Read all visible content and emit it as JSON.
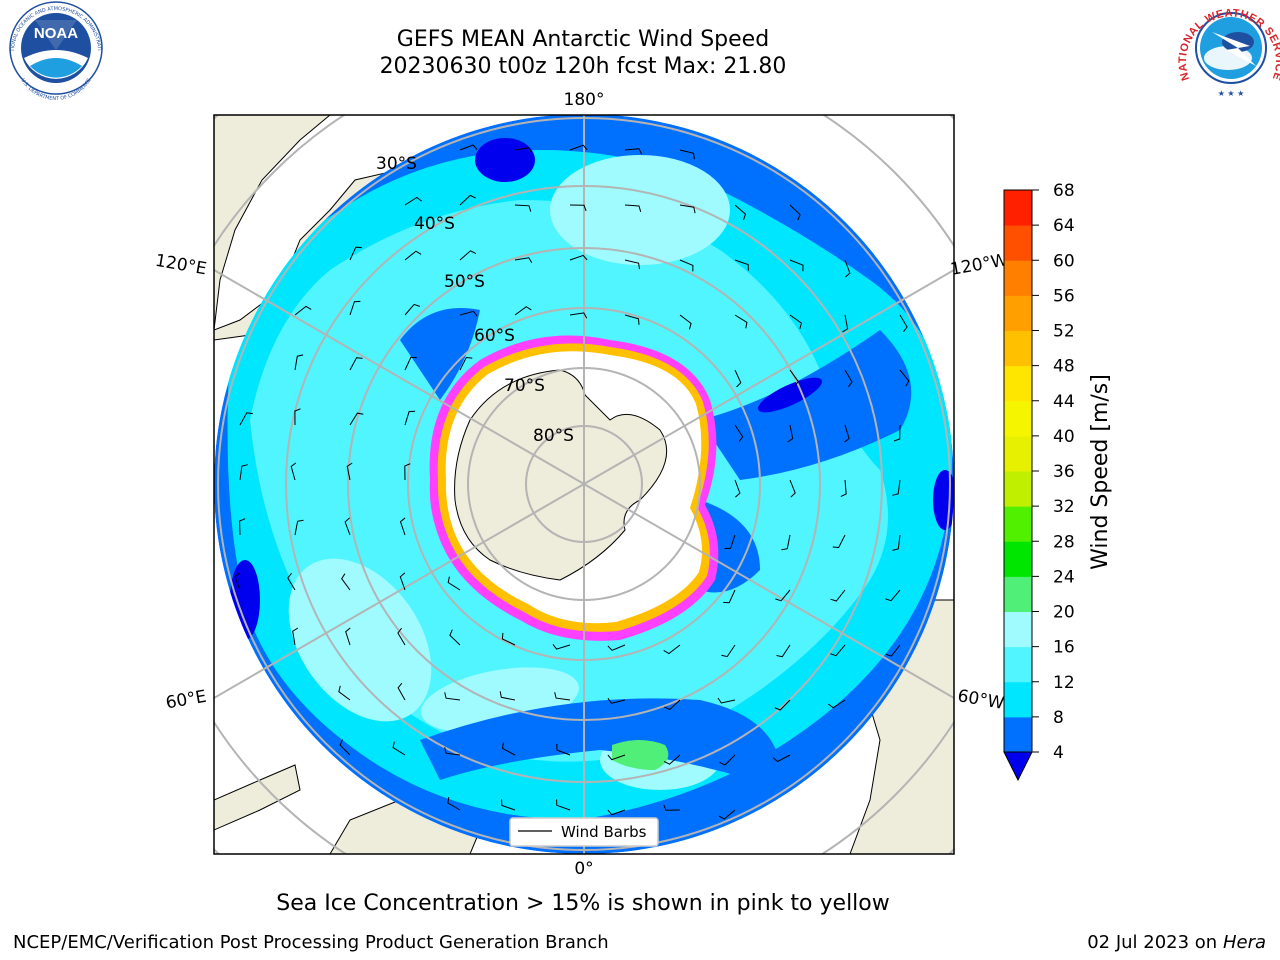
{
  "header": {
    "title_line1": "GEFS MEAN Antarctic Wind Speed",
    "title_line2": "20230630 t00z 120h fcst   Max: 21.80"
  },
  "logos": {
    "left": {
      "text": "NOAA",
      "ring_text": "NATIONAL OCEANIC AND ATMOSPHERIC ADMINISTRATION",
      "ring_text_bottom": "U.S. DEPARTMENT OF COMMERCE",
      "color": "#1f4fa0"
    },
    "right": {
      "ring_text": "NATIONAL WEATHER SERVICE",
      "color": "#d8262c"
    }
  },
  "map": {
    "projection": "south-polar-stereographic",
    "longitude_labels": {
      "top": "180°",
      "bottom": "0°",
      "upper_left": "120°E",
      "upper_right": "120°W",
      "lower_left": "60°E",
      "lower_right": "60°W"
    },
    "latitude_labels": [
      "30°S",
      "40°S",
      "50°S",
      "60°S",
      "70°S",
      "80°S"
    ],
    "colors": {
      "land": "#eeecdb",
      "ice": "#ffffff",
      "ice_edge": [
        "#ff40ff",
        "#ffb000",
        "#ffe000"
      ],
      "grid": "#b4b4b4",
      "ocean_4_8": "#0070ff",
      "ocean_8_12": "#00e6ff",
      "ocean_12_16": "#50f5ff",
      "ocean_16_20": "#9ffbff",
      "ocean_20_24": "#50f078"
    },
    "legend": {
      "label": "Wind Barbs"
    }
  },
  "colorbar": {
    "label": "Wind Speed [m/s]",
    "ticks": [
      "4",
      "8",
      "12",
      "16",
      "20",
      "24",
      "28",
      "32",
      "36",
      "40",
      "44",
      "48",
      "52",
      "56",
      "60",
      "64",
      "68"
    ],
    "colors": [
      "#0070ff",
      "#00e6ff",
      "#50f5ff",
      "#9ffbff",
      "#50f078",
      "#00e600",
      "#50f000",
      "#c0f000",
      "#e6f000",
      "#f5f500",
      "#ffe600",
      "#ffc000",
      "#ffa000",
      "#ff8000",
      "#ff5000",
      "#ff2000"
    ],
    "underflow_color": "#0000ee"
  },
  "footer": {
    "note": "Sea Ice Concentration > 15% is shown in pink to yellow",
    "credit": "NCEP/EMC/Verification Post Processing Product Generation Branch",
    "date_prefix": "02 Jul 2023 on ",
    "date_host": "Hera"
  }
}
